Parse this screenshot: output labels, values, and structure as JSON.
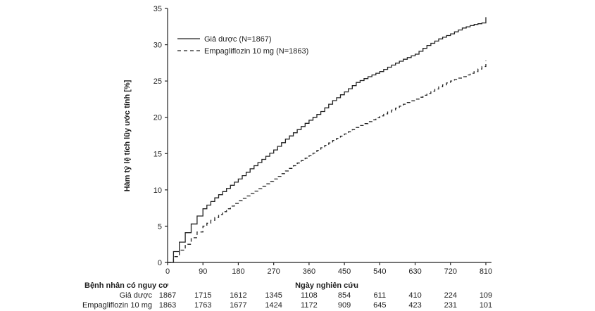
{
  "chart_data": {
    "type": "line",
    "title": "",
    "xlabel": "Ngày nghiên cứu",
    "ylabel": "Hàm tỷ lệ tích lũy ước tính [%]",
    "xlim": [
      0,
      810
    ],
    "ylim": [
      0,
      35
    ],
    "xticks": [
      0,
      90,
      180,
      270,
      360,
      450,
      540,
      630,
      720,
      810
    ],
    "yticks": [
      0,
      5,
      10,
      15,
      20,
      25,
      30,
      35
    ],
    "grid": false,
    "legend_position": "top-left-inside",
    "line_color": "#222222",
    "series": [
      {
        "name": "Giả dược (N=1867)",
        "style": "solid",
        "x": [
          0,
          15,
          30,
          45,
          60,
          75,
          90,
          120,
          150,
          180,
          210,
          240,
          270,
          300,
          330,
          360,
          390,
          420,
          450,
          480,
          510,
          540,
          570,
          600,
          630,
          660,
          690,
          720,
          750,
          780,
          800,
          810
        ],
        "y": [
          0,
          1.5,
          2.8,
          4.1,
          5.3,
          6.4,
          7.4,
          8.9,
          10.2,
          11.5,
          12.9,
          14.2,
          15.5,
          17.0,
          18.3,
          19.6,
          20.8,
          22.3,
          23.5,
          24.8,
          25.6,
          26.3,
          27.2,
          28.0,
          28.7,
          29.9,
          30.8,
          31.5,
          32.3,
          32.8,
          33.0,
          33.8
        ]
      },
      {
        "name": "Empagliflozin 10 mg (N=1863)",
        "style": "dashed",
        "x": [
          0,
          15,
          30,
          45,
          60,
          75,
          90,
          120,
          150,
          180,
          210,
          240,
          270,
          300,
          330,
          360,
          390,
          420,
          450,
          480,
          510,
          540,
          570,
          600,
          630,
          660,
          690,
          720,
          750,
          780,
          800,
          810
        ],
        "y": [
          0,
          0.8,
          1.7,
          2.5,
          3.4,
          4.2,
          5.0,
          6.2,
          7.4,
          8.5,
          9.5,
          10.5,
          11.5,
          12.6,
          13.7,
          14.7,
          15.8,
          16.8,
          17.7,
          18.6,
          19.4,
          20.2,
          21.0,
          21.8,
          22.5,
          23.3,
          24.2,
          25.0,
          25.6,
          26.3,
          27.0,
          27.8
        ]
      }
    ],
    "risk_table": {
      "header": "Bệnh nhân có nguy cơ",
      "rows": [
        {
          "label": "Giả dược",
          "values": [
            1867,
            1715,
            1612,
            1345,
            1108,
            854,
            611,
            410,
            224,
            109
          ]
        },
        {
          "label": "Empagliflozin 10 mg",
          "values": [
            1863,
            1763,
            1677,
            1424,
            1172,
            909,
            645,
            423,
            231,
            101
          ]
        }
      ]
    }
  }
}
